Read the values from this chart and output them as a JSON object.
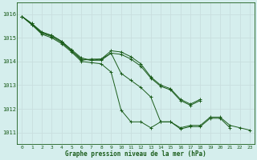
{
  "background_color": "#d5eeed",
  "grid_color": "#b8d8d8",
  "line_color": "#1a5c1a",
  "xlabel": "Graphe pression niveau de la mer (hPa)",
  "xlim": [
    -0.5,
    23.5
  ],
  "ylim": [
    1010.5,
    1016.5
  ],
  "yticks": [
    1011,
    1012,
    1013,
    1014,
    1015,
    1016
  ],
  "xticks": [
    0,
    1,
    2,
    3,
    4,
    5,
    6,
    7,
    8,
    9,
    10,
    11,
    12,
    13,
    14,
    15,
    16,
    17,
    18,
    19,
    20,
    21,
    22,
    23
  ],
  "series": [
    [
      1015.9,
      1015.6,
      1015.2,
      1015.1,
      1014.85,
      1014.45,
      1014.1,
      1014.05,
      1014.1,
      1014.35,
      1013.5,
      1013.2,
      1012.9,
      1012.5,
      1011.45,
      1011.45,
      1011.15,
      1011.25,
      1011.25,
      1011.6,
      1011.6,
      1011.2,
      null,
      null
    ],
    [
      1015.9,
      1015.55,
      1015.2,
      1015.05,
      1014.8,
      1014.45,
      1014.05,
      1014.1,
      1014.1,
      1014.45,
      1014.4,
      1014.2,
      1013.9,
      1013.35,
      1013.0,
      1012.85,
      1012.4,
      1012.2,
      1012.4,
      null,
      null,
      null,
      null,
      null
    ],
    [
      1015.9,
      1015.55,
      1015.15,
      1015.0,
      1014.75,
      1014.4,
      1014.0,
      1013.95,
      1013.9,
      1013.55,
      1011.95,
      1011.45,
      1011.45,
      1011.2,
      1011.45,
      1011.45,
      1011.2,
      1011.3,
      1011.3,
      1011.65,
      1011.65,
      1011.3,
      1011.2,
      1011.1
    ],
    [
      1015.9,
      1015.6,
      1015.25,
      1015.1,
      1014.85,
      1014.5,
      1014.15,
      1014.05,
      1014.05,
      1014.35,
      1014.3,
      1014.1,
      1013.8,
      1013.3,
      1012.95,
      1012.8,
      1012.35,
      1012.15,
      1012.35,
      null,
      null,
      null,
      null,
      null
    ]
  ]
}
